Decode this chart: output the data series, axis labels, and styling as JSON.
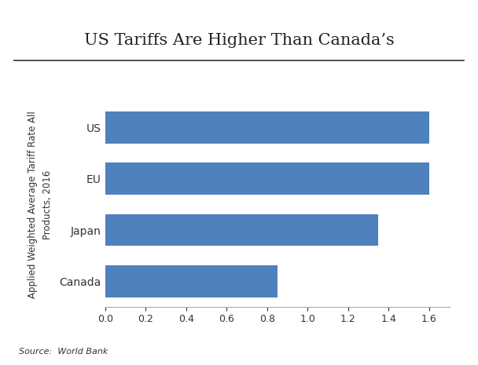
{
  "title": "US Tariffs Are Higher Than Canada’s",
  "categories": [
    "Canada",
    "Japan",
    "EU",
    "US"
  ],
  "values": [
    0.85,
    1.35,
    1.6,
    1.6
  ],
  "bar_color": "#4F81BD",
  "ylabel": "Applied Weighted Average Tariff Rate All\nProducts, 2016",
  "xlim": [
    0,
    1.7
  ],
  "xticks": [
    0.0,
    0.2,
    0.4,
    0.6,
    0.8,
    1.0,
    1.2,
    1.4,
    1.6
  ],
  "source_text": "Source:  World Bank",
  "title_fontsize": 15,
  "tick_fontsize": 9,
  "ylabel_fontsize": 8.5,
  "source_fontsize": 8,
  "background_color": "#ffffff",
  "bar_height": 0.62
}
